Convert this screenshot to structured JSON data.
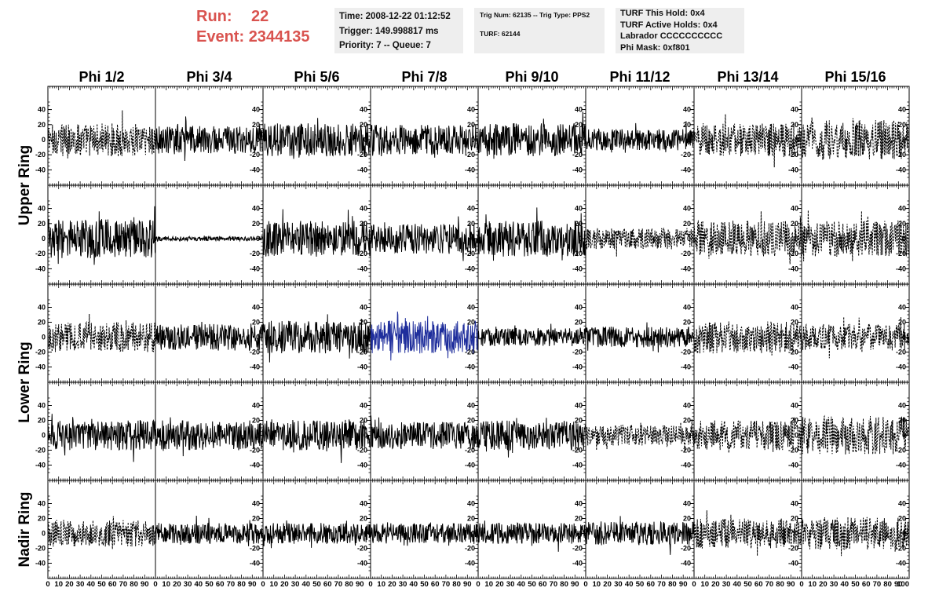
{
  "header": {
    "run_label": "Run:",
    "run_value": "22",
    "event_label": "Event:",
    "event_value": "2344135"
  },
  "info_time": {
    "time": "Time: 2008-12-22 01:12:52",
    "trigger": "Trigger: 149.998817 ms",
    "priority": "Priority: 7 -- Queue: 7"
  },
  "info_trig": {
    "trig": "Trig Num: 62135 -- Trig Type: PPS2",
    "turf": "TURF: 62144"
  },
  "info_turf": {
    "hold": "TURF This Hold: 0x4",
    "active": "TURF Active Holds: 0x4",
    "labrador": "Labrador CCCCCCCCCC",
    "phi_mask": "Phi Mask: 0xf801"
  },
  "chart_data": {
    "type": "line",
    "columns": [
      "Phi 1/2",
      "Phi 3/4",
      "Phi 5/6",
      "Phi 7/8",
      "Phi 9/10",
      "Phi 11/12",
      "Phi 13/14",
      "Phi 15/16"
    ],
    "row_groups": [
      {
        "label": "Upper Ring",
        "rows": [
          0,
          1
        ]
      },
      {
        "label": "Lower Ring",
        "rows": [
          2,
          3
        ]
      },
      {
        "label": "Nadir Ring",
        "rows": [
          4
        ]
      }
    ],
    "xlim": [
      0,
      100
    ],
    "ylim": [
      -50,
      50
    ],
    "x_ticks": [
      0,
      10,
      20,
      30,
      40,
      50,
      60,
      70,
      80,
      90,
      100
    ],
    "x_tick_labels": [
      "0",
      "10",
      "20",
      "30",
      "40",
      "50",
      "60",
      "70",
      "80",
      "90",
      "100"
    ],
    "y_ticks": [
      -40,
      -20,
      0,
      20,
      40
    ],
    "y_tick_labels": [
      "-40",
      "-20",
      "0",
      "20",
      "40"
    ],
    "colors": {
      "default": "#000000",
      "highlight": "#1f2e9c",
      "header_text": "#d9534f",
      "info_bg": "#eeeeee"
    },
    "panels": [
      [
        {
          "style": "dashed",
          "amp": 22
        },
        {
          "style": "solid",
          "amp": 18
        },
        {
          "style": "solid",
          "amp": 22
        },
        {
          "style": "solid",
          "amp": 20
        },
        {
          "style": "solid",
          "amp": 22
        },
        {
          "style": "solid",
          "amp": 14
        },
        {
          "style": "dashed",
          "amp": 22
        },
        {
          "style": "dashed",
          "amp": 26
        }
      ],
      [
        {
          "style": "solid",
          "amp": 26
        },
        {
          "style": "solid",
          "amp": 3
        },
        {
          "style": "solid",
          "amp": 24
        },
        {
          "style": "solid",
          "amp": 20
        },
        {
          "style": "solid",
          "amp": 24
        },
        {
          "style": "dashed",
          "amp": 14
        },
        {
          "style": "dashed",
          "amp": 24
        },
        {
          "style": "dashed",
          "amp": 24
        }
      ],
      [
        {
          "style": "dashed",
          "amp": 20
        },
        {
          "style": "solid",
          "amp": 18
        },
        {
          "style": "solid",
          "amp": 22
        },
        {
          "style": "solid",
          "amp": 22,
          "highlight": true
        },
        {
          "style": "solid",
          "amp": 12
        },
        {
          "style": "solid",
          "amp": 14
        },
        {
          "style": "dashed",
          "amp": 22
        },
        {
          "style": "dashed",
          "amp": 18
        }
      ],
      [
        {
          "style": "solid",
          "amp": 20
        },
        {
          "style": "solid",
          "amp": 20
        },
        {
          "style": "solid",
          "amp": 20
        },
        {
          "style": "solid",
          "amp": 18
        },
        {
          "style": "solid",
          "amp": 20
        },
        {
          "style": "dashed",
          "amp": 14
        },
        {
          "style": "dashed",
          "amp": 20
        },
        {
          "style": "dashed",
          "amp": 26
        }
      ],
      [
        {
          "style": "dashed",
          "amp": 18
        },
        {
          "style": "solid",
          "amp": 14
        },
        {
          "style": "solid",
          "amp": 14
        },
        {
          "style": "solid",
          "amp": 14
        },
        {
          "style": "solid",
          "amp": 14
        },
        {
          "style": "solid",
          "amp": 16
        },
        {
          "style": "dashed",
          "amp": 20
        },
        {
          "style": "dashed",
          "amp": 22
        }
      ]
    ]
  }
}
